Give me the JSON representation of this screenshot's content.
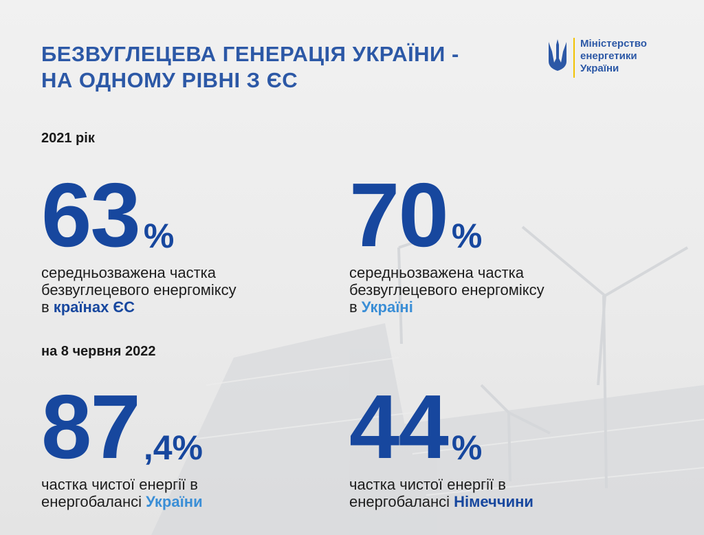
{
  "header": {
    "title_lines": [
      "БЕЗВУГЛЕЦЕВА ГЕНЕРАЦІЯ УКРАЇНИ -",
      "НА ОДНОМУ РІВНІ З ЄС"
    ]
  },
  "logo": {
    "lines": [
      "Міністерство",
      "енергетики",
      "України"
    ]
  },
  "sections": [
    {
      "label": "2021 рік",
      "stats": [
        {
          "value": "63",
          "unit": "%",
          "lines": [
            "середньозважена частка",
            "безвуглецевого енергоміксу"
          ],
          "lead": "в",
          "highlight": "країнах ЄС"
        },
        {
          "value": "70",
          "unit": "%",
          "lines": [
            "середньозважена частка",
            "безвуглецевого енергоміксу"
          ],
          "lead": "в",
          "highlight": "Україні"
        }
      ]
    },
    {
      "label": "на 8 червня 2022",
      "stats": [
        {
          "value": "87",
          "unit": ",4%",
          "lines": [
            "частка чистої енергії в"
          ],
          "lead": "енергобалансі",
          "highlight": "України"
        },
        {
          "value": "44",
          "unit": "%",
          "lines": [
            "частка чистої енергії в"
          ],
          "lead": "енергобалансі",
          "highlight": "Німеччини"
        }
      ]
    }
  ]
}
